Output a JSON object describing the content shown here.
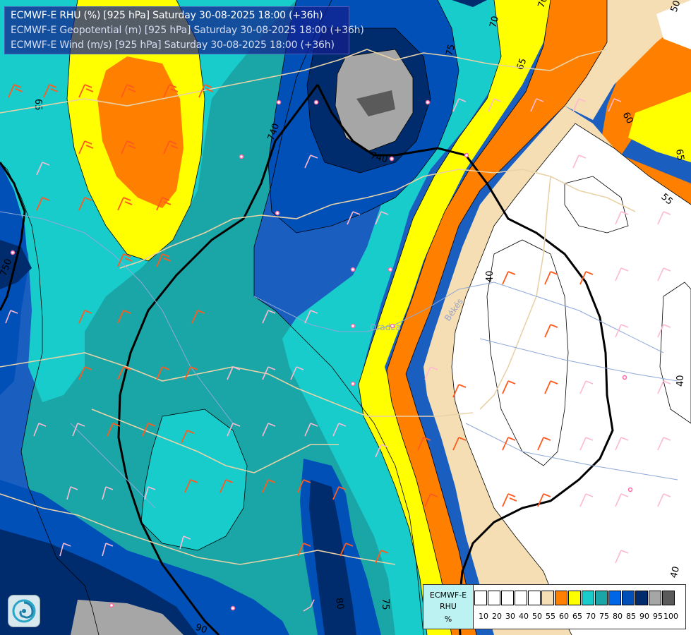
{
  "title_lines": [
    "ECMWF-E RHU (%) [925 hPa] Saturday 30-08-2025 18:00 (+36h)",
    "ECMWF-E Geopotential (m) [925 hPa] Saturday 30-08-2025 18:00 (+36h)",
    "ECMWF-E Wind (m/s) [925 hPa] Saturday 30-08-2025 18:00 (+36h)"
  ],
  "legend": {
    "model": "ECMWF-E",
    "variable": "RHU",
    "unit": "%",
    "levels": [
      "10",
      "20",
      "30",
      "40",
      "50",
      "55",
      "60",
      "65",
      "70",
      "75",
      "80",
      "85",
      "90",
      "95",
      "100"
    ],
    "colors": [
      "#ffffff",
      "#ffffff",
      "#ffffff",
      "#ffffff",
      "#ffffff",
      "#f5deb3",
      "#ff8000",
      "#ffff00",
      "#19cccc",
      "#1aa6a6",
      "#0066e6",
      "#0050b8",
      "#002c6e",
      "#a6a6a6",
      "#5a5a5a"
    ]
  },
  "geopotential_labels": [
    "740",
    "740",
    "750"
  ],
  "rhu_labels": [
    "70",
    "75",
    "65",
    "60",
    "65",
    "55",
    "50",
    "40",
    "40",
    "40",
    "75",
    "80",
    "90",
    "65",
    "70"
  ],
  "city_labels": [
    "Békés",
    "Oradea"
  ],
  "logo": "ecmwf-swirl-icon"
}
